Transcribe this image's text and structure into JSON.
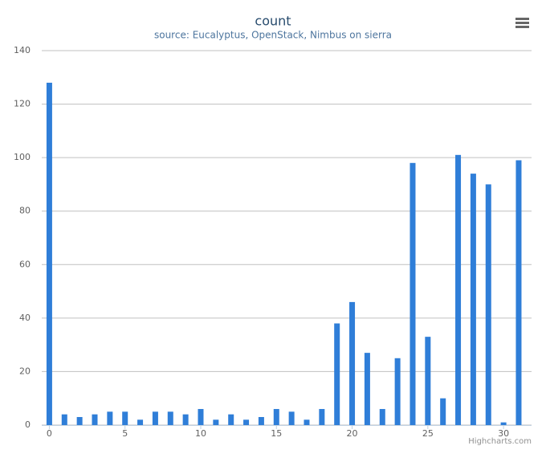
{
  "chart_data": {
    "type": "bar",
    "title": "count",
    "subtitle": "source: Eucalyptus, OpenStack, Nimbus on sierra",
    "x": [
      0,
      1,
      2,
      3,
      4,
      5,
      6,
      7,
      8,
      9,
      10,
      11,
      12,
      13,
      14,
      15,
      16,
      17,
      18,
      19,
      20,
      21,
      22,
      23,
      24,
      25,
      26,
      27,
      28,
      29,
      30,
      31
    ],
    "values": [
      128,
      4,
      3,
      4,
      5,
      5,
      2,
      5,
      5,
      4,
      6,
      2,
      4,
      2,
      3,
      6,
      5,
      2,
      6,
      38,
      46,
      27,
      6,
      25,
      98,
      33,
      10,
      101,
      94,
      90,
      1,
      99
    ],
    "color": "#2f7ed8",
    "xlim": [
      -0.5,
      31.85
    ],
    "xticks": [
      0,
      5,
      10,
      15,
      20,
      25,
      30
    ],
    "ylim": [
      0,
      140
    ],
    "yticks": [
      0,
      20,
      40,
      60,
      80,
      100,
      120,
      140
    ],
    "grid": true,
    "credits": "Highcharts.com"
  }
}
